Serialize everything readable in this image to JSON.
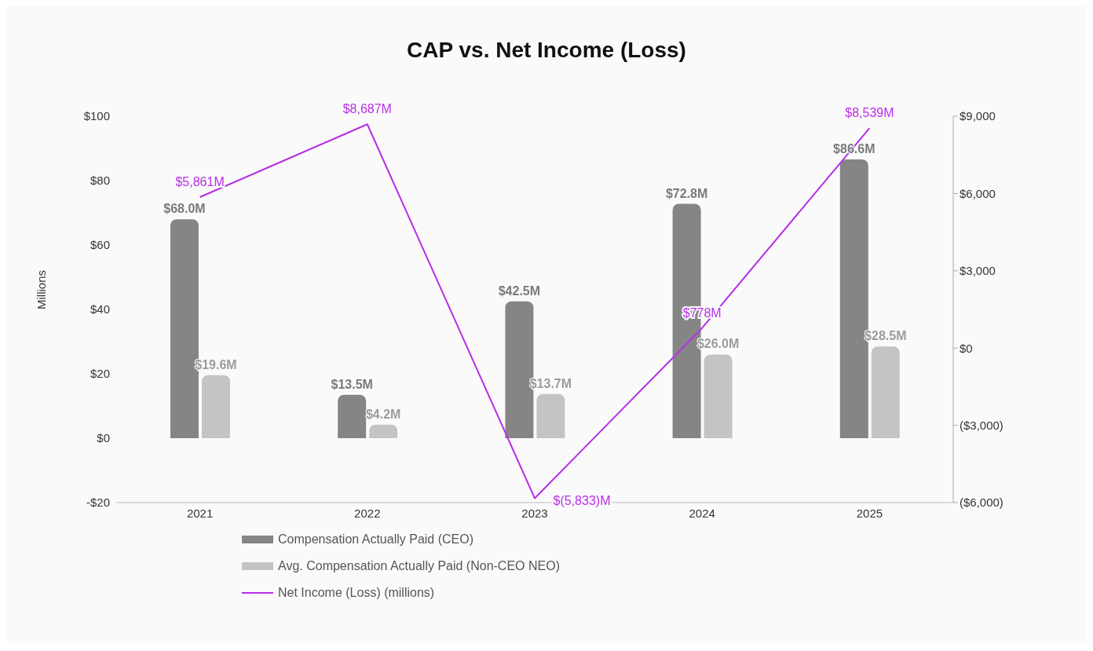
{
  "chart_data": {
    "type": "bar",
    "title": "CAP vs. Net Income (Loss)",
    "ylabel": "Millions",
    "categories": [
      "2021",
      "2022",
      "2023",
      "2024",
      "2025"
    ],
    "series": [
      {
        "name": "Compensation Actually Paid (CEO)",
        "color": "#858585",
        "values": [
          68.0,
          13.5,
          42.5,
          72.8,
          86.6
        ],
        "value_labels": [
          "$68.0M",
          "$13.5M",
          "$42.5M",
          "$72.8M",
          "$86.6M"
        ]
      },
      {
        "name": "Avg. Compensation Actually Paid (Non-CEO NEO)",
        "color": "#c4c4c4",
        "values": [
          19.6,
          4.2,
          13.7,
          26.0,
          28.5
        ],
        "value_labels": [
          "$19.6M",
          "$4.2M",
          "$13.7M",
          "$26.0M",
          "$28.5M"
        ]
      },
      {
        "name": "Net Income (Loss) (millions)",
        "type": "line",
        "axis": "y2",
        "color": "#b82ee8",
        "values": [
          5861,
          8687,
          -5833,
          778,
          8539
        ],
        "value_labels": [
          "$5,861M",
          "$8,687M",
          "$(5,833)M",
          "$778M",
          "$8,539M"
        ]
      }
    ],
    "ylim": [
      -20,
      100
    ],
    "yticks": [
      {
        "value": -20,
        "label": "-$20"
      },
      {
        "value": 0,
        "label": "$0"
      },
      {
        "value": 20,
        "label": "$20"
      },
      {
        "value": 40,
        "label": "$40"
      },
      {
        "value": 60,
        "label": "$60"
      },
      {
        "value": 80,
        "label": "$80"
      },
      {
        "value": 100,
        "label": "$100"
      }
    ],
    "y2lim": [
      -6000,
      9000
    ],
    "y2ticks": [
      {
        "value": -6000,
        "label": "($6,000)"
      },
      {
        "value": -3000,
        "label": "($3,000)"
      },
      {
        "value": 0,
        "label": "$0"
      },
      {
        "value": 3000,
        "label": "$3,000"
      },
      {
        "value": 6000,
        "label": "$6,000"
      },
      {
        "value": 9000,
        "label": "$9,000"
      }
    ],
    "grid": false,
    "legend": "bottom left",
    "marker": "none",
    "line_style": "solid"
  }
}
